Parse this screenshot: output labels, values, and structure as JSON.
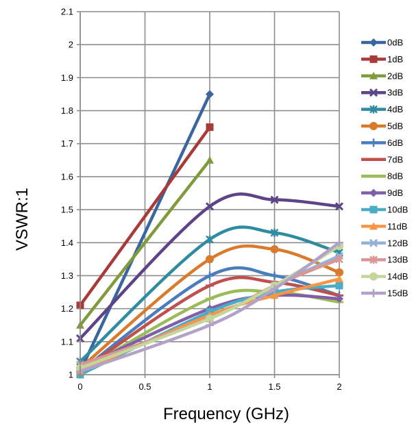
{
  "chart_data": {
    "type": "line",
    "xlabel": "Frequency (GHz)",
    "ylabel": "VSWR:1",
    "xlim": [
      0,
      2
    ],
    "ylim": [
      1,
      2.1
    ],
    "x_ticks": [
      "0",
      "0.5",
      "1",
      "1.5",
      "2"
    ],
    "y_ticks": [
      "1",
      "1.1",
      "1.2",
      "1.3",
      "1.4",
      "1.5",
      "1.6",
      "1.7",
      "1.8",
      "1.9",
      "2",
      "2.1"
    ],
    "grid": true,
    "legend_position": "right",
    "series": [
      {
        "name": "0dB",
        "color": "#3A66A0",
        "marker": "diamond",
        "x": [
          0,
          1
        ],
        "y": [
          1.01,
          1.85
        ]
      },
      {
        "name": "1dB",
        "color": "#A83A37",
        "marker": "square",
        "x": [
          0,
          1
        ],
        "y": [
          1.21,
          1.75
        ]
      },
      {
        "name": "2dB",
        "color": "#7F9B3B",
        "marker": "triangle",
        "x": [
          0,
          1
        ],
        "y": [
          1.15,
          1.65
        ]
      },
      {
        "name": "3dB",
        "color": "#5E4487",
        "marker": "x",
        "x": [
          0,
          1,
          1.5,
          2
        ],
        "y": [
          1.11,
          1.51,
          1.53,
          1.51
        ]
      },
      {
        "name": "4dB",
        "color": "#2E8BA0",
        "marker": "star",
        "x": [
          0,
          1,
          1.5,
          2
        ],
        "y": [
          1.04,
          1.41,
          1.43,
          1.37
        ]
      },
      {
        "name": "5dB",
        "color": "#D97B2C",
        "marker": "circle",
        "x": [
          0,
          1,
          1.5,
          2
        ],
        "y": [
          1.02,
          1.35,
          1.38,
          1.31
        ]
      },
      {
        "name": "6dB",
        "color": "#4A7DBB",
        "marker": "plus",
        "x": [
          0,
          1,
          1.5,
          2
        ],
        "y": [
          1.01,
          1.3,
          1.3,
          1.24
        ]
      },
      {
        "name": "7dB",
        "color": "#C0504D",
        "marker": "dash",
        "x": [
          0,
          1,
          1.5,
          2
        ],
        "y": [
          1.01,
          1.27,
          1.28,
          1.24
        ]
      },
      {
        "name": "8dB",
        "color": "#9BBB59",
        "marker": "dash",
        "x": [
          0,
          1,
          1.5,
          2
        ],
        "y": [
          1.01,
          1.23,
          1.25,
          1.22
        ]
      },
      {
        "name": "9dB",
        "color": "#7F5FA8",
        "marker": "diamond",
        "x": [
          0,
          1,
          1.5,
          2
        ],
        "y": [
          1.02,
          1.2,
          1.24,
          1.23
        ]
      },
      {
        "name": "10dB",
        "color": "#4BACC6",
        "marker": "square",
        "x": [
          0,
          1,
          1.5,
          2
        ],
        "y": [
          1.0,
          1.19,
          1.25,
          1.27
        ]
      },
      {
        "name": "11dB",
        "color": "#F79646",
        "marker": "triangle",
        "x": [
          0,
          1,
          1.5,
          2
        ],
        "y": [
          1.01,
          1.18,
          1.24,
          1.29
        ]
      },
      {
        "name": "12dB",
        "color": "#95B3D7",
        "marker": "x",
        "x": [
          0,
          1,
          1.5,
          2
        ],
        "y": [
          1.03,
          1.17,
          1.27,
          1.36
        ]
      },
      {
        "name": "13dB",
        "color": "#D99694",
        "marker": "star",
        "x": [
          0,
          1,
          1.5,
          2
        ],
        "y": [
          1.03,
          1.17,
          1.27,
          1.35
        ]
      },
      {
        "name": "14dB",
        "color": "#C3D69B",
        "marker": "circle",
        "x": [
          0,
          1,
          1.5,
          2
        ],
        "y": [
          1.02,
          1.17,
          1.27,
          1.39
        ]
      },
      {
        "name": "15dB",
        "color": "#B3A2C7",
        "marker": "plus",
        "x": [
          0,
          1,
          1.5,
          2
        ],
        "y": [
          1.01,
          1.15,
          1.26,
          1.4
        ]
      }
    ]
  }
}
